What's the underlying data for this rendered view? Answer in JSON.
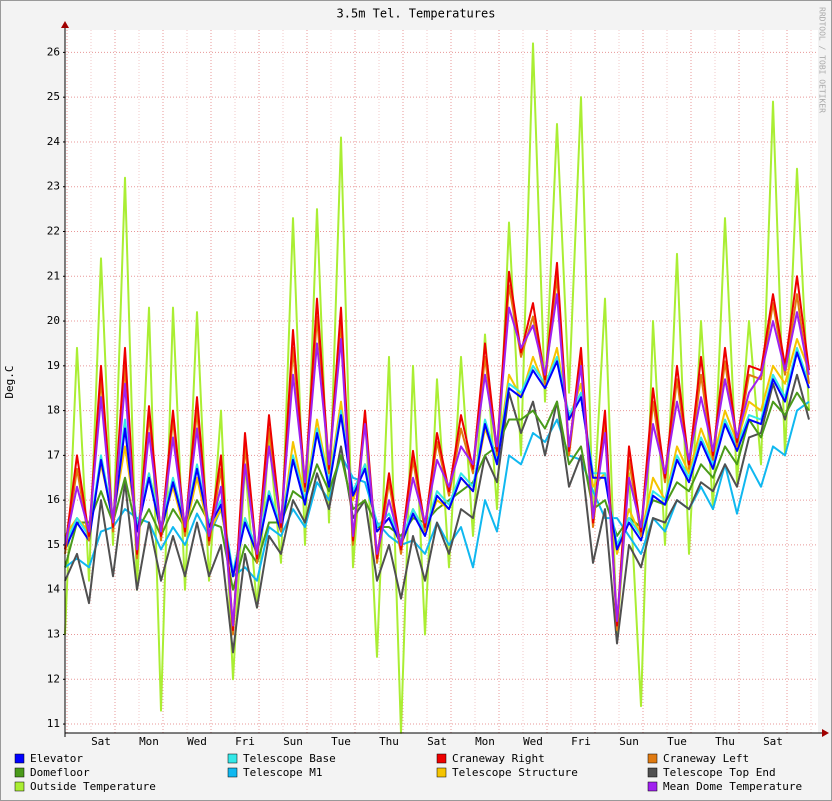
{
  "chart_data": {
    "type": "line",
    "title": "3.5m Tel. Temperatures",
    "y_label": "Deg.C",
    "credit": "RRDTOOL / TOBI OETIKER",
    "ylim": [
      10.8,
      26.5
    ],
    "yticks": [
      11,
      12,
      13,
      14,
      15,
      16,
      17,
      18,
      19,
      20,
      21,
      22,
      23,
      24,
      25,
      26
    ],
    "grid": true,
    "categories": [
      null,
      null,
      null,
      "Sat",
      null,
      null,
      null,
      "Mon",
      null,
      null,
      null,
      "Wed",
      null,
      null,
      null,
      "Fri",
      null,
      null,
      null,
      "Sun",
      null,
      null,
      null,
      "Tue",
      null,
      null,
      null,
      "Thu",
      null,
      null,
      null,
      "Sat",
      null,
      null,
      null,
      "Mon",
      null,
      null,
      null,
      "Wed",
      null,
      null,
      null,
      "Fri",
      null,
      null,
      null,
      "Sun",
      null,
      null,
      null,
      "Tue",
      null,
      null,
      null,
      "Thu",
      null,
      null,
      null,
      "Sat",
      null,
      null,
      null
    ],
    "series": [
      {
        "name": "Elevator",
        "color": "#0000ff",
        "values": [
          14.9,
          15.5,
          15.1,
          16.9,
          15.5,
          17.6,
          15.3,
          16.5,
          15.3,
          16.4,
          15.4,
          16.7,
          15.4,
          15.9,
          14.3,
          15.5,
          14.8,
          16.1,
          15.3,
          16.9,
          15.9,
          17.5,
          16.3,
          17.9,
          16.1,
          16.7,
          15.3,
          15.6,
          15.0,
          15.7,
          15.2,
          16.1,
          15.8,
          16.5,
          16.2,
          17.7,
          16.8,
          18.5,
          18.3,
          18.9,
          18.5,
          19.1,
          17.8,
          18.3,
          16.5,
          16.5,
          14.9,
          15.5,
          15.1,
          16.1,
          15.9,
          16.9,
          16.4,
          17.3,
          16.7,
          17.7,
          17.1,
          17.8,
          17.7,
          18.7,
          18.2,
          19.3,
          18.5
        ]
      },
      {
        "name": "Telescope Base",
        "color": "#33e8e8",
        "values": [
          15.0,
          15.6,
          15.2,
          17.0,
          15.6,
          17.8,
          15.4,
          16.6,
          15.4,
          16.5,
          15.5,
          16.8,
          15.5,
          16.0,
          14.4,
          15.6,
          14.9,
          16.2,
          15.4,
          17.0,
          16.0,
          17.6,
          16.4,
          18.0,
          16.2,
          16.8,
          15.4,
          15.7,
          15.1,
          15.8,
          15.3,
          16.2,
          15.9,
          16.6,
          16.3,
          17.8,
          16.9,
          18.6,
          18.4,
          19.0,
          18.6,
          19.2,
          17.9,
          18.4,
          16.6,
          16.6,
          15.0,
          15.6,
          15.2,
          16.2,
          16.0,
          17.0,
          16.5,
          17.4,
          16.8,
          17.8,
          17.2,
          17.9,
          17.8,
          18.8,
          18.3,
          19.4,
          18.6
        ]
      },
      {
        "name": "Craneway Right",
        "color": "#ee0000",
        "values": [
          14.9,
          17.0,
          15.2,
          19.0,
          15.4,
          19.4,
          14.8,
          18.1,
          15.2,
          18.0,
          15.3,
          18.3,
          15.1,
          17.0,
          13.1,
          17.5,
          14.7,
          17.9,
          15.4,
          19.8,
          16.3,
          20.5,
          16.7,
          20.3,
          15.1,
          18.0,
          14.7,
          16.6,
          14.9,
          17.1,
          15.4,
          17.5,
          16.2,
          17.9,
          16.7,
          19.5,
          17.1,
          21.1,
          19.3,
          20.4,
          18.7,
          21.3,
          17.1,
          19.4,
          15.5,
          18.0,
          13.2,
          17.2,
          15.3,
          18.5,
          16.5,
          19.0,
          16.8,
          19.2,
          17.0,
          19.4,
          17.3,
          19.0,
          18.9,
          20.6,
          19.0,
          21.0,
          18.9
        ]
      },
      {
        "name": "Craneway Left",
        "color": "#e07a10",
        "values": [
          14.8,
          16.7,
          15.1,
          18.7,
          15.3,
          19.0,
          14.7,
          17.9,
          15.1,
          17.8,
          15.2,
          18.0,
          15.0,
          16.7,
          13.0,
          17.2,
          14.6,
          17.6,
          15.3,
          19.4,
          16.2,
          20.1,
          16.6,
          20.0,
          15.0,
          17.9,
          14.6,
          16.4,
          14.8,
          16.9,
          15.3,
          17.3,
          16.1,
          17.6,
          16.6,
          19.2,
          17.0,
          20.8,
          19.2,
          20.1,
          18.6,
          21.0,
          17.0,
          19.2,
          15.4,
          17.8,
          13.1,
          16.9,
          15.2,
          18.2,
          16.4,
          18.7,
          16.7,
          18.8,
          16.9,
          19.1,
          17.2,
          18.8,
          18.7,
          20.4,
          18.8,
          20.6,
          18.6
        ]
      },
      {
        "name": "Domefloor",
        "color": "#4a9a1a",
        "values": [
          14.5,
          15.5,
          15.5,
          16.2,
          15.5,
          16.5,
          15.3,
          15.8,
          15.2,
          15.8,
          15.4,
          16.0,
          15.5,
          15.4,
          14.0,
          15.0,
          14.6,
          15.5,
          15.5,
          16.2,
          16.0,
          16.8,
          16.2,
          17.0,
          15.8,
          16.0,
          15.4,
          15.4,
          15.2,
          15.6,
          15.5,
          15.8,
          16.0,
          16.2,
          16.4,
          17.0,
          17.2,
          17.8,
          17.8,
          18.0,
          17.6,
          18.2,
          16.8,
          17.2,
          15.8,
          16.0,
          15.2,
          15.6,
          15.4,
          16.0,
          15.9,
          16.4,
          16.2,
          16.8,
          16.5,
          17.2,
          16.8,
          17.8,
          17.4,
          18.2,
          17.9,
          18.4,
          18.0
        ]
      },
      {
        "name": "Telescope M1",
        "color": "#10b8f0",
        "values": [
          14.5,
          14.7,
          14.5,
          15.3,
          15.4,
          15.8,
          15.6,
          15.5,
          14.9,
          15.4,
          15.0,
          15.7,
          15.2,
          15.8,
          14.3,
          14.5,
          14.2,
          15.4,
          15.2,
          15.8,
          15.4,
          16.4,
          16.0,
          17.0,
          16.5,
          16.4,
          15.5,
          15.2,
          15.0,
          15.1,
          14.8,
          15.5,
          15.0,
          15.4,
          14.5,
          16.0,
          15.3,
          17.0,
          16.8,
          17.5,
          17.3,
          17.8,
          17.0,
          16.9,
          16.2,
          15.6,
          15.6,
          15.2,
          14.8,
          15.6,
          15.3,
          16.0,
          15.8,
          16.3,
          15.8,
          16.8,
          15.7,
          16.8,
          16.3,
          17.2,
          17.0,
          18.0,
          18.2
        ]
      },
      {
        "name": "Telescope Structure",
        "color": "#f5c400",
        "values": [
          15.2,
          15.6,
          15.3,
          16.8,
          15.6,
          17.2,
          15.4,
          16.6,
          15.4,
          16.3,
          15.3,
          16.5,
          15.3,
          15.8,
          14.3,
          15.6,
          14.9,
          16.2,
          15.3,
          17.3,
          16.0,
          17.8,
          16.4,
          18.2,
          16.0,
          16.8,
          15.3,
          15.6,
          15.1,
          15.8,
          15.3,
          16.0,
          15.8,
          16.5,
          16.2,
          17.6,
          16.9,
          18.8,
          18.3,
          19.2,
          18.5,
          19.4,
          17.8,
          18.6,
          16.3,
          16.6,
          14.8,
          15.8,
          15.2,
          16.5,
          16.0,
          17.2,
          16.6,
          17.6,
          16.9,
          18.0,
          17.3,
          18.2,
          18.0,
          19.0,
          18.6,
          19.6,
          18.9
        ]
      },
      {
        "name": "Telescope Top End",
        "color": "#505050",
        "values": [
          14.2,
          14.8,
          13.7,
          16.0,
          14.3,
          16.4,
          14.0,
          15.5,
          14.2,
          15.2,
          14.3,
          15.5,
          14.3,
          15.0,
          12.6,
          14.8,
          13.6,
          15.2,
          14.8,
          16.0,
          15.5,
          16.6,
          15.8,
          17.2,
          15.6,
          16.0,
          14.2,
          15.0,
          13.8,
          15.2,
          14.2,
          15.5,
          14.8,
          15.8,
          15.6,
          17.0,
          16.4,
          18.4,
          17.5,
          18.2,
          17.0,
          18.2,
          16.3,
          17.0,
          14.6,
          15.8,
          12.8,
          15.0,
          14.5,
          15.6,
          15.5,
          16.0,
          15.8,
          16.4,
          16.2,
          16.8,
          16.3,
          17.4,
          17.5,
          18.6,
          17.8,
          18.8,
          17.8
        ]
      },
      {
        "name": "Outside Temperature",
        "color": "#aaee33",
        "values": [
          13.0,
          19.4,
          14.2,
          21.4,
          15.0,
          23.2,
          14.0,
          20.3,
          11.3,
          20.3,
          14.0,
          20.2,
          14.2,
          18.0,
          12.0,
          16.8,
          13.6,
          17.4,
          14.6,
          22.3,
          15.0,
          22.5,
          15.5,
          24.1,
          14.5,
          18.0,
          12.5,
          19.2,
          10.8,
          19.0,
          13.0,
          18.7,
          14.5,
          19.2,
          15.2,
          19.7,
          15.8,
          22.2,
          17.0,
          26.2,
          18.2,
          24.4,
          18.4,
          25.0,
          15.5,
          20.5,
          13.0,
          16.6,
          11.4,
          20.0,
          15.0,
          21.5,
          14.8,
          20.0,
          15.8,
          22.3,
          16.4,
          20.0,
          16.8,
          24.9,
          17.0,
          23.4,
          18.0
        ]
      },
      {
        "name": "Mean Dome Temperature",
        "color": "#a020f0",
        "values": [
          15.0,
          16.3,
          15.3,
          18.3,
          15.5,
          18.6,
          14.9,
          17.5,
          15.3,
          17.4,
          15.4,
          17.6,
          15.2,
          16.3,
          13.2,
          16.8,
          14.8,
          17.2,
          15.5,
          18.8,
          16.4,
          19.5,
          16.8,
          19.6,
          15.2,
          17.7,
          14.8,
          16.0,
          15.0,
          16.5,
          15.5,
          16.9,
          16.3,
          17.2,
          16.8,
          18.8,
          17.2,
          20.3,
          19.4,
          19.9,
          18.8,
          20.6,
          17.2,
          19.0,
          15.6,
          17.5,
          13.3,
          16.5,
          15.4,
          17.7,
          16.6,
          18.2,
          16.9,
          18.3,
          17.1,
          18.7,
          17.4,
          18.4,
          18.8,
          20.0,
          18.9,
          20.2,
          18.8
        ]
      }
    ]
  }
}
